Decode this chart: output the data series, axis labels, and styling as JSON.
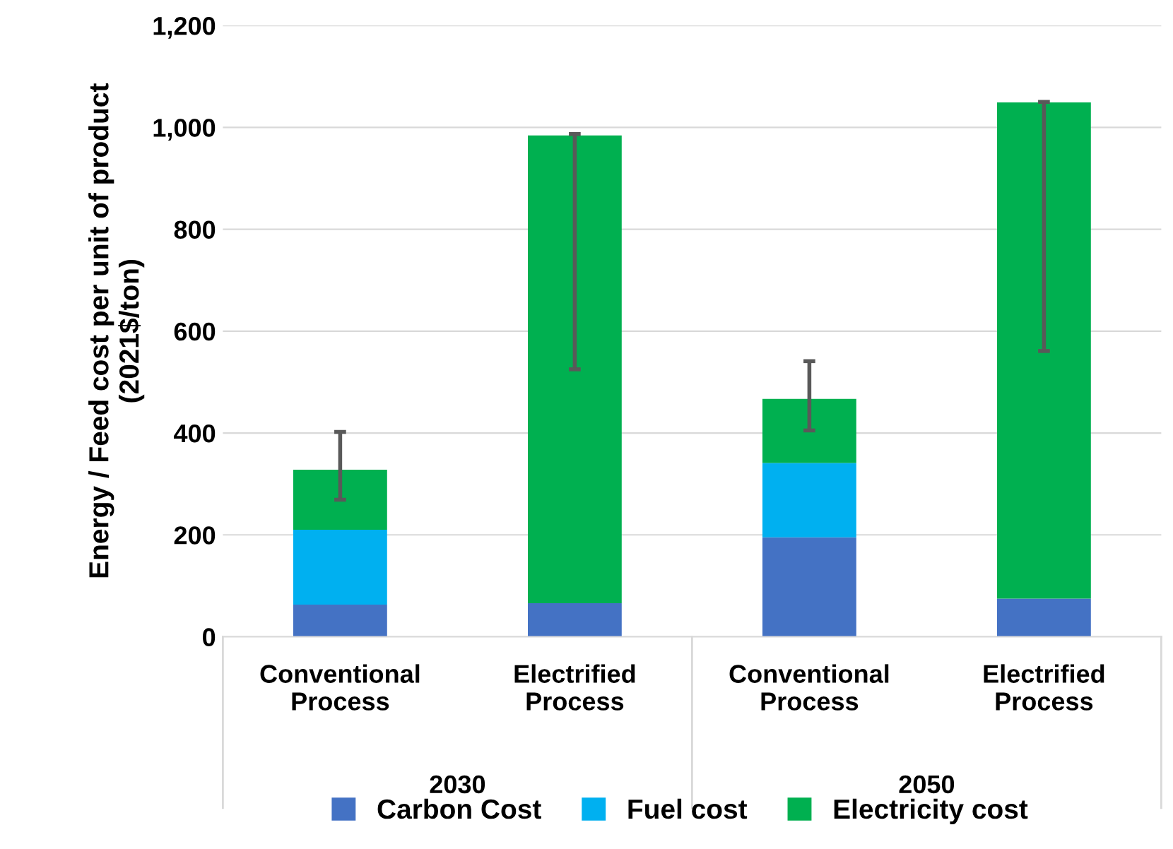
{
  "chart_data": {
    "type": "bar",
    "stacked": true,
    "categories": [
      "Conventional Process",
      "Electrified Process",
      "Conventional Process",
      "Electrified Process"
    ],
    "ylabel": "Energy / Feed cost per unit of product\n(2021$/ton)",
    "series": [
      {
        "name": "Carbon Cost",
        "color": "#4472c4",
        "values": [
          63,
          66,
          195,
          75
        ]
      },
      {
        "name": "Fuel cost",
        "color": "#00b0f0",
        "values": [
          147,
          0,
          146,
          0
        ]
      },
      {
        "name": "Electricity cost",
        "color": "#00b050",
        "values": [
          118,
          918,
          126,
          974
        ],
        "errors": [
          [
            269,
            402
          ],
          [
            525,
            987
          ],
          [
            405,
            541
          ],
          [
            561,
            1050
          ]
        ]
      }
    ],
    "annotations": [
      "2030",
      "2050"
    ],
    "ylim": [
      0,
      1200
    ],
    "yticks": [
      0,
      200,
      400,
      600,
      800,
      {
        "value": 1000,
        "label": "1,000"
      },
      {
        "value": 1200,
        "label": "1,200"
      }
    ],
    "grid": "y",
    "legend": "bottom"
  }
}
